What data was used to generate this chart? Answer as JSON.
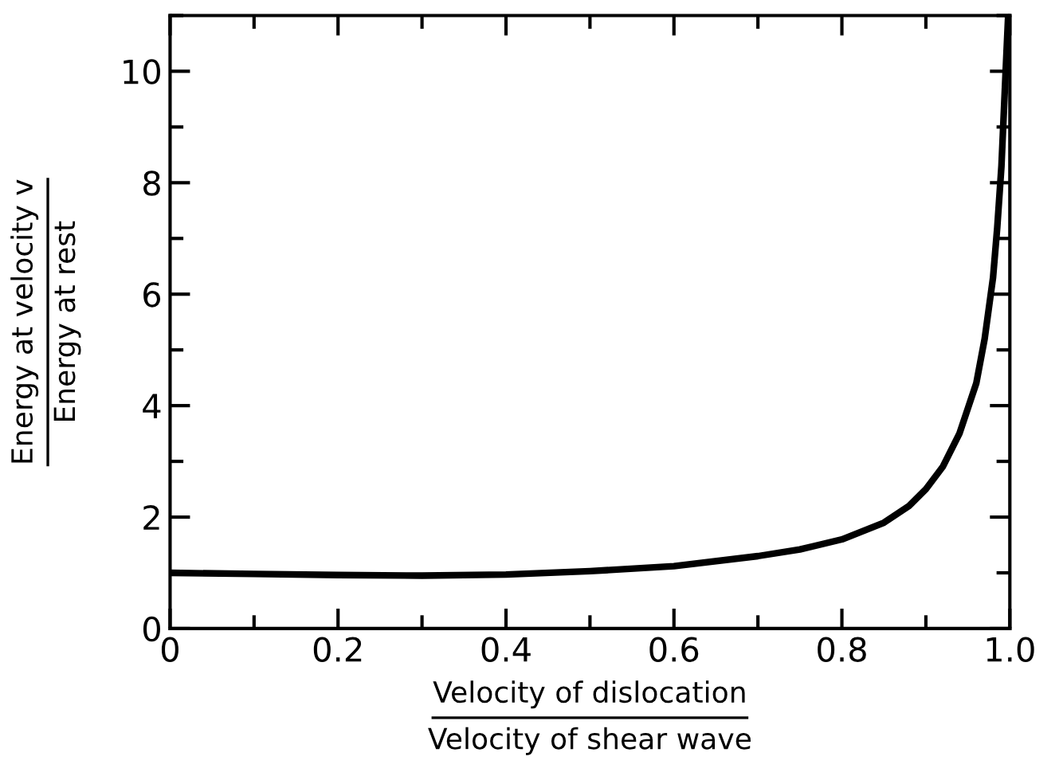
{
  "chart_data": {
    "type": "line",
    "xlabel": "Velocity of dislocation\nVelocity of shear wave",
    "ylabel": "Energy at velocity v\nEnergy at rest",
    "series": [
      {
        "color": "#000000",
        "x": [
          0,
          0.1,
          0.2,
          0.3,
          0.4,
          0.5,
          0.6,
          0.7,
          0.75,
          0.8,
          0.85,
          0.88,
          0.9,
          0.92,
          0.94,
          0.96,
          0.97,
          0.98,
          0.985,
          0.99,
          0.995,
          0.998
        ],
        "values": [
          1.0,
          0.98,
          0.96,
          0.95,
          0.97,
          1.03,
          1.12,
          1.3,
          1.42,
          1.6,
          1.9,
          2.2,
          2.5,
          2.9,
          3.5,
          4.4,
          5.2,
          6.3,
          7.2,
          8.3,
          10,
          11
        ]
      }
    ],
    "xlim": [
      0,
      1.0
    ],
    "ylim": [
      0,
      11
    ],
    "xticks": [
      0,
      0.2,
      0.4,
      0.6,
      0.8,
      {
        "value": 1,
        "label": "1.0"
      }
    ],
    "yticks": [
      0,
      2,
      4,
      6,
      8,
      10
    ],
    "grid": false,
    "legend": false,
    "marker": "none",
    "line_style": "solid"
  }
}
